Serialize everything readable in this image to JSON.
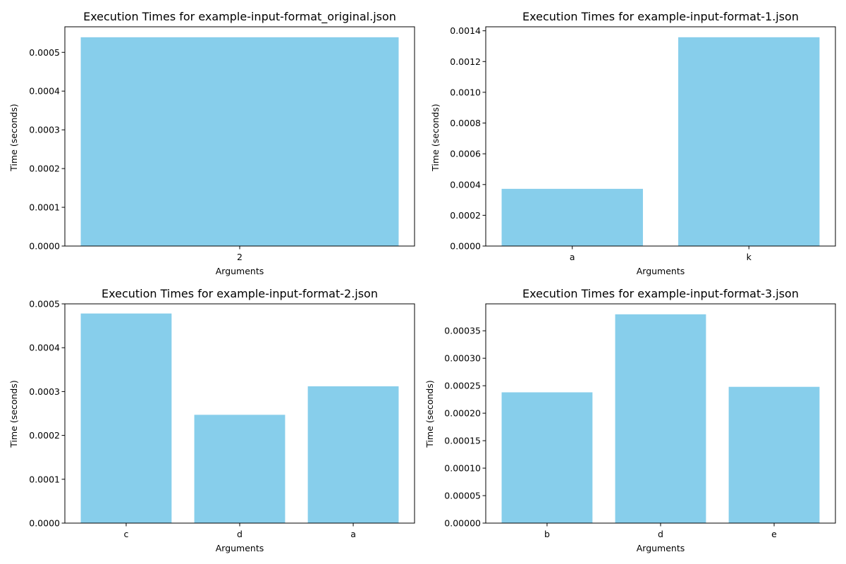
{
  "figure": {
    "bar_color": "#87ceeb",
    "axis_color": "#000000",
    "background": "#ffffff"
  },
  "chart_data": [
    {
      "type": "bar",
      "title": "Execution Times for example-input-format_original.json",
      "xlabel": "Arguments",
      "ylabel": "Time (seconds)",
      "categories": [
        "2"
      ],
      "values": [
        0.000539
      ],
      "ylim": [
        0,
        0.000566
      ],
      "yticks": [
        0.0,
        0.0001,
        0.0002,
        0.0003,
        0.0004,
        0.0005
      ],
      "ytick_labels": [
        "0.0000",
        "0.0001",
        "0.0002",
        "0.0003",
        "0.0004",
        "0.0005"
      ],
      "grid": false,
      "legend": "none"
    },
    {
      "type": "bar",
      "title": "Execution Times for example-input-format-1.json",
      "xlabel": "Arguments",
      "ylabel": "Time (seconds)",
      "categories": [
        "a",
        "k"
      ],
      "values": [
        0.000372,
        0.001358
      ],
      "ylim": [
        0,
        0.001426
      ],
      "yticks": [
        0.0,
        0.0002,
        0.0004,
        0.0006,
        0.0008,
        0.001,
        0.0012,
        0.0014
      ],
      "ytick_labels": [
        "0.0000",
        "0.0002",
        "0.0004",
        "0.0006",
        "0.0008",
        "0.0010",
        "0.0012",
        "0.0014"
      ],
      "grid": false,
      "legend": "none"
    },
    {
      "type": "bar",
      "title": "Execution Times for example-input-format-2.json",
      "xlabel": "Arguments",
      "ylabel": "Time (seconds)",
      "categories": [
        "c",
        "d",
        "a"
      ],
      "values": [
        0.000478,
        0.000247,
        0.000312
      ],
      "ylim": [
        0,
        0.0005
      ],
      "yticks": [
        0.0,
        0.0001,
        0.0002,
        0.0003,
        0.0004,
        0.0005
      ],
      "ytick_labels": [
        "0.0000",
        "0.0001",
        "0.0002",
        "0.0003",
        "0.0004",
        "0.0005"
      ],
      "grid": false,
      "legend": "none"
    },
    {
      "type": "bar",
      "title": "Execution Times for example-input-format-3.json",
      "xlabel": "Arguments",
      "ylabel": "Time (seconds)",
      "categories": [
        "b",
        "d",
        "e"
      ],
      "values": [
        0.000238,
        0.00038,
        0.000248
      ],
      "ylim": [
        0,
        0.000399
      ],
      "yticks": [
        0.0,
        5e-05,
        0.0001,
        0.00015,
        0.0002,
        0.00025,
        0.0003,
        0.00035
      ],
      "ytick_labels": [
        "0.00000",
        "0.00005",
        "0.00010",
        "0.00015",
        "0.00020",
        "0.00025",
        "0.00030",
        "0.00035"
      ],
      "grid": false,
      "legend": "none"
    }
  ]
}
